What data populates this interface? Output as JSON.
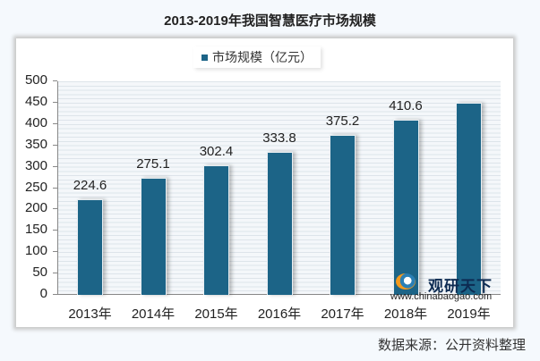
{
  "title": "2013-2019年我国智慧医疗市场规模",
  "legend": {
    "label": "市场规模（亿元）",
    "color": "#1c6487"
  },
  "y_axis": {
    "ticks": [
      "500",
      "450",
      "400",
      "350",
      "300",
      "250",
      "200",
      "150",
      "100",
      "50",
      "0"
    ]
  },
  "bars": [
    {
      "year": "2013年",
      "value": 224.6,
      "label": "224.6"
    },
    {
      "year": "2014年",
      "value": 275.1,
      "label": "275.1"
    },
    {
      "year": "2015年",
      "value": 302.4,
      "label": "302.4"
    },
    {
      "year": "2016年",
      "value": 333.8,
      "label": "333.8"
    },
    {
      "year": "2017年",
      "value": 375.2,
      "label": "375.2"
    },
    {
      "year": "2018年",
      "value": 410.6,
      "label": "410.6"
    },
    {
      "year": "2019年",
      "value": 450,
      "label": ""
    }
  ],
  "watermark": {
    "name": "观研天下",
    "url": "www.chinabaogao.com"
  },
  "source": "数据来源：公开资料整理",
  "chart_data": {
    "type": "bar",
    "title": "2013-2019年我国智慧医疗市场规模",
    "categories": [
      "2013年",
      "2014年",
      "2015年",
      "2016年",
      "2017年",
      "2018年",
      "2019年"
    ],
    "series": [
      {
        "name": "市场规模（亿元）",
        "values": [
          224.6,
          275.1,
          302.4,
          333.8,
          375.2,
          410.6,
          450
        ]
      }
    ],
    "data_labels": [
      "224.6",
      "275.1",
      "302.4",
      "333.8",
      "375.2",
      "410.6",
      ""
    ],
    "xlabel": "",
    "ylabel": "",
    "ylim": [
      0,
      500
    ],
    "yticks": [
      0,
      50,
      100,
      150,
      200,
      250,
      300,
      350,
      400,
      450,
      500
    ],
    "grid": true,
    "legend_position": "top",
    "color": "#1c6487",
    "source": "数据来源：公开资料整理"
  }
}
